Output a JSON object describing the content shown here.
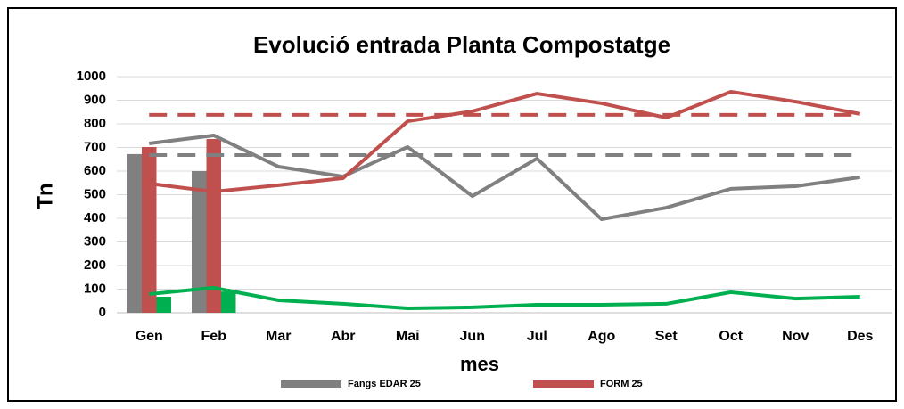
{
  "chart_data": {
    "type": "combo",
    "title": "Evolució entrada Planta Compostatge",
    "y_label": "Tn",
    "x_label": "mes",
    "categories": [
      "Gen",
      "Feb",
      "Mar",
      "Abr",
      "Mai",
      "Jun",
      "Jul",
      "Ago",
      "Set",
      "Oct",
      "Nov",
      "Des"
    ],
    "ylim": [
      0,
      1000
    ],
    "yticks": [
      0,
      100,
      200,
      300,
      400,
      500,
      600,
      700,
      800,
      900,
      1000
    ],
    "grid": true,
    "legend": "bottom",
    "series": [
      {
        "name": "Fangs EDAR 25",
        "kind": "bar",
        "color": "#808080",
        "values": [
          672,
          600,
          null,
          null,
          null,
          null,
          null,
          null,
          null,
          null,
          null,
          null
        ]
      },
      {
        "name": "FORM 25",
        "kind": "bar",
        "color": "#c0504d",
        "values": [
          702,
          736,
          null,
          null,
          null,
          null,
          null,
          null,
          null,
          null,
          null,
          null
        ]
      },
      {
        "kind": "bar",
        "color": "#00b050",
        "values": [
          68,
          90,
          null,
          null,
          null,
          null,
          null,
          null,
          null,
          null,
          null,
          null
        ]
      },
      {
        "kind": "line",
        "color": "#808080",
        "values": [
          717,
          751,
          619,
          577,
          702,
          494,
          653,
          396,
          445,
          525,
          536,
          574
        ]
      },
      {
        "kind": "line",
        "color": "#c0504d",
        "values": [
          547,
          513,
          540,
          570,
          811,
          853,
          928,
          887,
          826,
          936,
          894,
          842
        ]
      },
      {
        "kind": "line",
        "color": "#00b050",
        "values": [
          79,
          106,
          53,
          38,
          19,
          23,
          34,
          34,
          38,
          87,
          60,
          68
        ]
      },
      {
        "kind": "dashed",
        "color": "#808080",
        "values": [
          668,
          668,
          668,
          668,
          668,
          668,
          668,
          668,
          668,
          668,
          668,
          668
        ]
      },
      {
        "kind": "dashed",
        "color": "#c0504d",
        "values": [
          838,
          838,
          838,
          838,
          838,
          838,
          838,
          838,
          838,
          838,
          838,
          838
        ]
      }
    ]
  }
}
